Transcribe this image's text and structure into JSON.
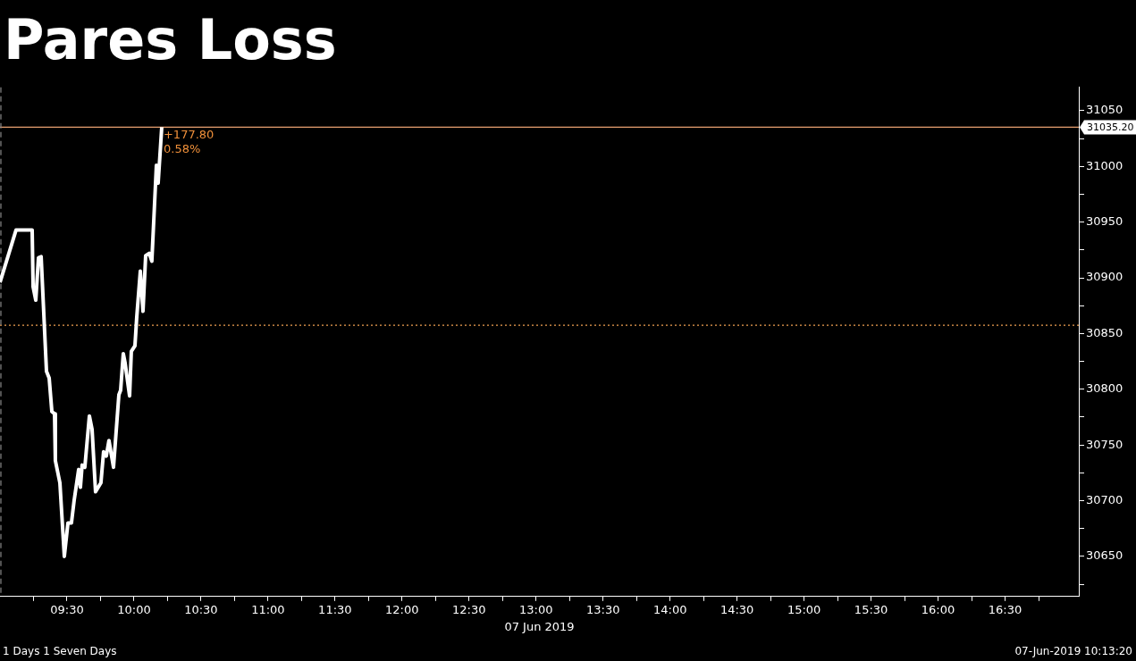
{
  "chart_data": {
    "type": "line",
    "title": "Pares Loss",
    "xlabel": "07 Jun 2019",
    "x": [
      9,
      9.12,
      9.24,
      9.247,
      9.267,
      9.287,
      9.307,
      9.347,
      9.367,
      9.387,
      9.407,
      9.413,
      9.447,
      9.48,
      9.507,
      9.533,
      9.553,
      9.587,
      9.6,
      9.613,
      9.633,
      9.667,
      9.687,
      9.713,
      9.753,
      9.773,
      9.793,
      9.813,
      9.847,
      9.887,
      9.9,
      9.92,
      9.933,
      9.967,
      9.98,
      10.007,
      10.02,
      10.047,
      10.067,
      10.087,
      10.113,
      10.133,
      10.167,
      10.18,
      10.207
    ],
    "series": [
      {
        "color": "#ffffff",
        "values": [
          30896,
          30943,
          30943,
          30892,
          30880,
          30918,
          30919,
          30816,
          30810,
          30780,
          30778,
          30736,
          30716,
          30650,
          30680,
          30680,
          30700,
          30728,
          30712,
          30732,
          30730,
          30776,
          30764,
          30708,
          30716,
          30744,
          30740,
          30754,
          30730,
          30795,
          30799,
          30832,
          30824,
          30794,
          30834,
          30839,
          30864,
          30906,
          30870,
          30920,
          30922,
          30915,
          31001,
          30985,
          31035.2
        ]
      }
    ],
    "xlim": [
      9,
      17.05
    ],
    "xticks": [
      {
        "value": 9.25,
        "label": null
      },
      {
        "value": 9.5,
        "label": "09:30"
      },
      {
        "value": 9.75,
        "label": null
      },
      {
        "value": 10,
        "label": "10:00"
      },
      {
        "value": 10.25,
        "label": null
      },
      {
        "value": 10.5,
        "label": "10:30"
      },
      {
        "value": 10.75,
        "label": null
      },
      {
        "value": 11,
        "label": "11:00"
      },
      {
        "value": 11.25,
        "label": null
      },
      {
        "value": 11.5,
        "label": "11:30"
      },
      {
        "value": 11.75,
        "label": null
      },
      {
        "value": 12,
        "label": "12:00"
      },
      {
        "value": 12.25,
        "label": null
      },
      {
        "value": 12.5,
        "label": "12:30"
      },
      {
        "value": 12.75,
        "label": null
      },
      {
        "value": 13,
        "label": "13:00"
      },
      {
        "value": 13.25,
        "label": null
      },
      {
        "value": 13.5,
        "label": "13:30"
      },
      {
        "value": 13.75,
        "label": null
      },
      {
        "value": 14,
        "label": "14:00"
      },
      {
        "value": 14.25,
        "label": null
      },
      {
        "value": 14.5,
        "label": "14:30"
      },
      {
        "value": 14.75,
        "label": null
      },
      {
        "value": 15,
        "label": "15:00"
      },
      {
        "value": 15.25,
        "label": null
      },
      {
        "value": 15.5,
        "label": "15:30"
      },
      {
        "value": 15.75,
        "label": null
      },
      {
        "value": 16,
        "label": "16:00"
      },
      {
        "value": 16.25,
        "label": null
      },
      {
        "value": 16.5,
        "label": "16:30"
      },
      {
        "value": 16.75,
        "label": null
      }
    ],
    "ylim": [
      30614,
      31071
    ],
    "yticks": [
      {
        "value": 30625,
        "label": null
      },
      30650,
      {
        "value": 30675,
        "label": null
      },
      30700,
      {
        "value": 30725,
        "label": null
      },
      30750,
      {
        "value": 30775,
        "label": null
      },
      30800,
      {
        "value": 30825,
        "label": null
      },
      30850,
      {
        "value": 30875,
        "label": null
      },
      30900,
      {
        "value": 30925,
        "label": null
      },
      30950,
      {
        "value": 30975,
        "label": null
      },
      31000,
      {
        "value": 31025,
        "label": null
      },
      31050
    ],
    "ref_lines": [
      {
        "axis": "y",
        "value": 31035.2,
        "label": "31035.20",
        "color": "#e8a070",
        "line_style": "solid"
      },
      {
        "axis": "y",
        "value": 30857.4,
        "color": "#f0a050",
        "line_style": "dotted"
      },
      {
        "axis": "x",
        "value": 9,
        "color": "#888888",
        "line_style": "dashed"
      }
    ],
    "annotations": [
      {
        "text": "+177.80",
        "x": 10.207,
        "y": 31035.2
      },
      {
        "text": "0.58%",
        "x": 10.207,
        "y": 31035.2
      },
      "1 Days 1 Seven Days",
      "07-Jun-2019 10:13:20"
    ],
    "grid": false,
    "legend": false,
    "marker": "none",
    "line_style": "solid"
  }
}
